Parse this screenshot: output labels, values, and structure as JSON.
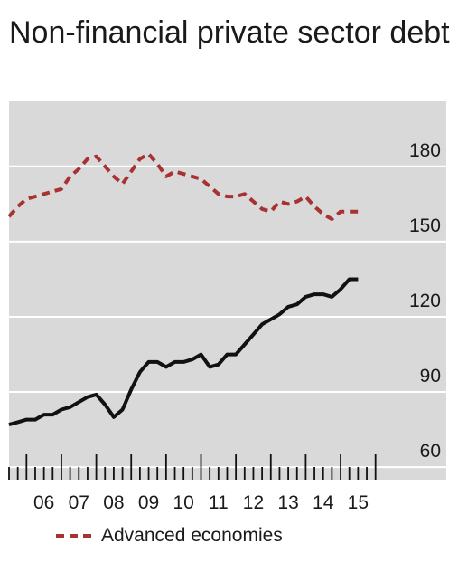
{
  "chart_data": {
    "type": "line",
    "title": "Non-financial private sector debt",
    "x_tick_labels": [
      "06",
      "07",
      "08",
      "09",
      "10",
      "11",
      "12",
      "13",
      "14",
      "15"
    ],
    "x_range": [
      2005.5,
      2016.5
    ],
    "y_tick_labels": [
      "60",
      "90",
      "120",
      "150",
      "180"
    ],
    "ylim": [
      55,
      205
    ],
    "y_axis_position": "right",
    "grid": "horizontal",
    "legend": {
      "placement": "bottom-left",
      "entries": [
        "Advanced economies"
      ]
    },
    "series": [
      {
        "name": "Advanced economies",
        "color": "#a83232",
        "style": "dashed",
        "x": [
          2005.5,
          2005.75,
          2006.0,
          2006.25,
          2006.5,
          2006.75,
          2007.0,
          2007.25,
          2007.5,
          2007.75,
          2008.0,
          2008.25,
          2008.5,
          2008.75,
          2009.0,
          2009.25,
          2009.5,
          2009.75,
          2010.0,
          2010.25,
          2010.5,
          2010.75,
          2011.0,
          2011.25,
          2011.5,
          2011.75,
          2012.0,
          2012.25,
          2012.5,
          2012.75,
          2013.0,
          2013.25,
          2013.5,
          2013.75,
          2014.0,
          2014.25,
          2014.5,
          2014.75,
          2015.0,
          2015.25,
          2015.5
        ],
        "y": [
          156,
          160,
          163,
          164,
          165,
          166,
          167,
          172,
          175,
          179,
          180,
          176,
          172,
          169,
          174,
          179,
          181,
          177,
          172,
          174,
          173,
          172,
          171,
          168,
          165,
          164,
          164,
          165,
          162,
          159,
          158,
          162,
          161,
          162,
          164,
          160,
          157,
          155,
          158,
          158,
          158
        ]
      },
      {
        "name": "",
        "color": "#111111",
        "style": "solid",
        "x": [
          2005.5,
          2005.75,
          2006.0,
          2006.25,
          2006.5,
          2006.75,
          2007.0,
          2007.25,
          2007.5,
          2007.75,
          2008.0,
          2008.25,
          2008.5,
          2008.75,
          2009.0,
          2009.25,
          2009.5,
          2009.75,
          2010.0,
          2010.25,
          2010.5,
          2010.75,
          2011.0,
          2011.25,
          2011.5,
          2011.75,
          2012.0,
          2012.25,
          2012.5,
          2012.75,
          2013.0,
          2013.25,
          2013.5,
          2013.75,
          2014.0,
          2014.25,
          2014.5,
          2014.75,
          2015.0,
          2015.25,
          2015.5
        ],
        "y": [
          73,
          74,
          75,
          75,
          77,
          77,
          79,
          80,
          82,
          84,
          85,
          81,
          76,
          79,
          87,
          94,
          98,
          98,
          96,
          98,
          98,
          99,
          101,
          96,
          97,
          101,
          101,
          105,
          109,
          113,
          115,
          117,
          120,
          121,
          124,
          125,
          125,
          124,
          127,
          131,
          131
        ]
      }
    ]
  }
}
